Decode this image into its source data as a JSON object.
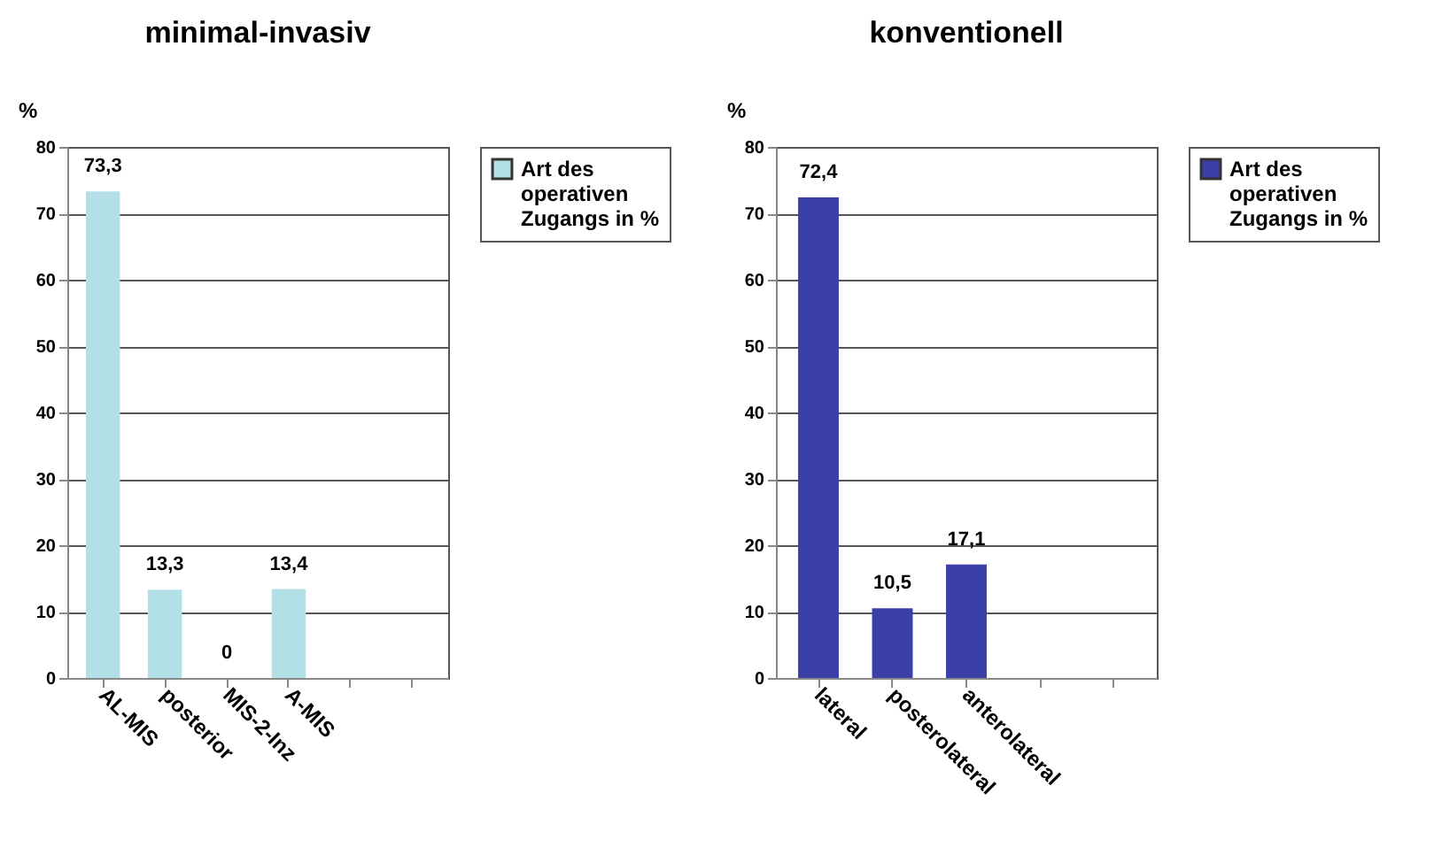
{
  "chart_data": [
    {
      "type": "bar",
      "title": "minimal-invasiv",
      "ylabel": "%",
      "categories": [
        "AL-MIS",
        "posterior",
        "MIS-2-Inz",
        "A-MIS",
        null,
        null
      ],
      "series": [
        {
          "name": "Art des operativen Zugangs in %",
          "color": "#b3e0e6",
          "values": [
            73.3,
            13.3,
            0,
            13.4,
            null,
            null
          ],
          "value_labels": [
            "73,3",
            "13,3",
            "0",
            "13,4",
            null,
            null
          ]
        }
      ],
      "ylim": [
        0,
        80
      ],
      "yticks": [
        0,
        10,
        20,
        30,
        40,
        50,
        60,
        70,
        80
      ],
      "grid": "y",
      "legend": "right"
    },
    {
      "type": "bar",
      "title": "konventionell",
      "ylabel": "%",
      "categories": [
        "lateral",
        "posterolateral",
        "anterolateral",
        null,
        null
      ],
      "series": [
        {
          "name": "Art des operativen Zugangs in %",
          "color": "#3b3fa8",
          "values": [
            72.4,
            10.5,
            17.1,
            null,
            null
          ],
          "value_labels": [
            "72,4",
            "10,5",
            "17,1",
            null,
            null
          ]
        }
      ],
      "ylim": [
        0,
        80
      ],
      "yticks": [
        0,
        10,
        20,
        30,
        40,
        50,
        60,
        70,
        80
      ],
      "grid": "y",
      "legend": "right"
    }
  ]
}
